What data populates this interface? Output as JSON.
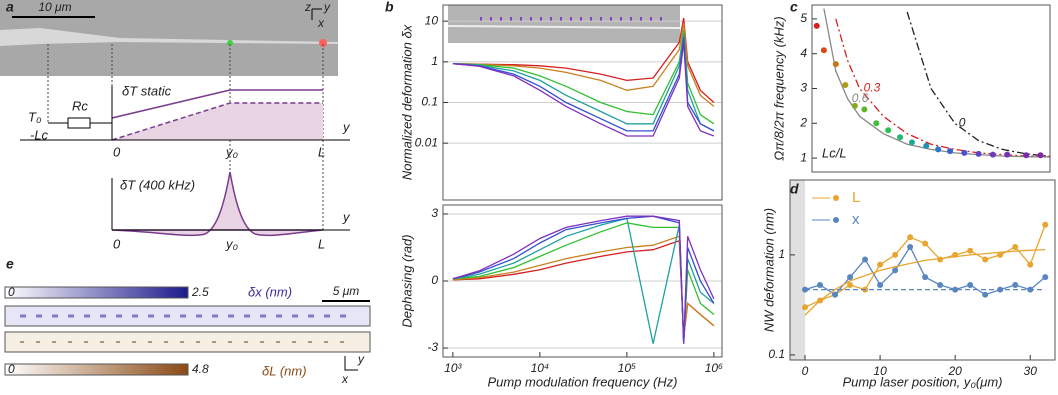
{
  "figure": {
    "letters": {
      "a": "a",
      "b": "b",
      "c": "c",
      "d": "d",
      "e": "e"
    },
    "panel_a": {
      "scale_bar": "10 μm",
      "axis_z": "z",
      "axis_y": "y",
      "axis_x": "x",
      "static_label": "δT static",
      "t0": "T₀",
      "rc": "Rc",
      "minus_lc": "-Lc",
      "zero": "0",
      "y0": "y₀",
      "l": "L",
      "y": "y",
      "ac_label": "δT  (400 kHz)",
      "zero2": "0",
      "y0_2": "y₀",
      "l2": "L",
      "y2": "y"
    },
    "panel_e": {
      "bar1_min": "0",
      "bar1_max": "2.5",
      "bar1_label": "δx (nm)",
      "scale_bar": "5 μm",
      "bar2_min": "0",
      "bar2_max": "4.8",
      "bar2_label": "δL (nm)",
      "axis_y": "y",
      "axis_x": "x"
    }
  },
  "chart_data": [
    {
      "type": "line",
      "ylabel": "Normalized deformation δx",
      "xlog": true,
      "ylog": true,
      "xlim": [
        770,
        1240000
      ],
      "ylim": [
        0.0004,
        25
      ],
      "yticks": [
        10,
        1,
        0.1,
        0.01
      ],
      "grid": true,
      "x": [
        1000,
        2000,
        5000,
        10000,
        20000,
        50000,
        100000,
        200000,
        400000,
        450000,
        500000,
        700000,
        1000000
      ],
      "series": [
        {
          "color": "#d42020",
          "values": [
            0.9,
            0.88,
            0.85,
            0.8,
            0.7,
            0.5,
            0.35,
            0.4,
            3,
            12,
            1,
            0.2,
            0.1
          ]
        },
        {
          "color": "#c88020",
          "values": [
            0.9,
            0.87,
            0.8,
            0.7,
            0.55,
            0.35,
            0.2,
            0.25,
            2,
            9,
            0.8,
            0.15,
            0.08
          ]
        },
        {
          "color": "#30c030",
          "values": [
            0.9,
            0.85,
            0.7,
            0.45,
            0.25,
            0.1,
            0.06,
            0.05,
            1,
            6,
            0.3,
            0.05,
            0.03
          ]
        },
        {
          "color": "#20a0a0",
          "values": [
            0.9,
            0.82,
            0.6,
            0.35,
            0.15,
            0.06,
            0.03,
            0.03,
            0.8,
            5,
            0.2,
            0.03,
            0.02
          ]
        },
        {
          "color": "#3050d0",
          "values": [
            0.9,
            0.8,
            0.5,
            0.25,
            0.1,
            0.04,
            0.02,
            0.02,
            0.5,
            4,
            0.1,
            0.03,
            0.02
          ]
        },
        {
          "color": "#8030c0",
          "values": [
            0.9,
            0.78,
            0.45,
            0.2,
            0.08,
            0.03,
            0.015,
            0.015,
            0.4,
            3,
            0.08,
            0.02,
            0.015
          ]
        }
      ]
    },
    {
      "type": "line",
      "ylabel": "Dephasing (rad)",
      "xlabel": "Pump modulation frequency (Hz)",
      "xlog": true,
      "xlim": [
        770,
        1240000
      ],
      "ylim": [
        -3.4,
        3.4
      ],
      "yticks": [
        3,
        0,
        -3
      ],
      "grid": true,
      "xticks": [
        {
          "value": 1000,
          "label": "10³"
        },
        {
          "value": 10000,
          "label": "10⁴"
        },
        {
          "value": 100000,
          "label": "10⁵"
        },
        {
          "value": 1000000,
          "label": "10⁶"
        }
      ],
      "x": [
        1000,
        2000,
        5000,
        10000,
        20000,
        50000,
        100000,
        200000,
        400000,
        450000,
        500000,
        700000,
        1000000
      ],
      "series": [
        {
          "color": "#d42020",
          "values": [
            0.05,
            0.1,
            0.3,
            0.5,
            0.8,
            1.1,
            1.3,
            1.4,
            1.8,
            -2.5,
            -1,
            -1.5,
            -2
          ]
        },
        {
          "color": "#c88020",
          "values": [
            0.05,
            0.15,
            0.4,
            0.7,
            1.0,
            1.3,
            1.5,
            1.6,
            2.0,
            -2.5,
            -1,
            -1.5,
            -2
          ]
        },
        {
          "color": "#30c030",
          "values": [
            0.1,
            0.2,
            0.6,
            1.1,
            1.6,
            2.2,
            2.6,
            2.4,
            2.4,
            -2.8,
            0.5,
            -1,
            -1.5
          ]
        },
        {
          "color": "#20a0a0",
          "values": [
            0.1,
            0.3,
            0.8,
            1.4,
            2.0,
            2.5,
            2.8,
            -2.8,
            2.5,
            -2.8,
            1,
            -0.5,
            -1
          ]
        },
        {
          "color": "#3050d0",
          "values": [
            0.1,
            0.4,
            1.0,
            1.7,
            2.3,
            2.6,
            2.8,
            2.9,
            2.6,
            -2.8,
            1.5,
            0,
            -1
          ]
        },
        {
          "color": "#8030c0",
          "values": [
            0.1,
            0.45,
            1.2,
            1.9,
            2.4,
            2.7,
            2.9,
            2.9,
            2.7,
            -2.8,
            2,
            0.5,
            -0.8
          ]
        }
      ]
    },
    {
      "type": "scatter",
      "ylabel": "Ωπ/8/2π  frequency (kHz)",
      "annotation": "Lc/L",
      "xlim": [
        0,
        1
      ],
      "ylim": [
        0.6,
        5.4
      ],
      "yticks": [
        1,
        2,
        3,
        4,
        5
      ],
      "grid": false,
      "x": [
        0.05,
        0.1,
        0.15,
        0.2,
        0.3,
        0.4,
        0.5,
        0.6,
        0.7,
        0.8,
        0.9,
        1.0
      ],
      "series": [
        {
          "name": "0",
          "color": "#222222",
          "dash": "8,3,2,3",
          "values": [
            null,
            null,
            null,
            null,
            null,
            5.2,
            3.0,
            2.0,
            1.5,
            1.25,
            1.12,
            1.05
          ]
        },
        {
          "name": "0.3",
          "color": "#d42020",
          "dash": "8,3,2,3",
          "values": [
            null,
            5.0,
            3.8,
            3.0,
            2.2,
            1.7,
            1.4,
            1.25,
            1.15,
            1.1,
            1.06,
            1.04
          ]
        },
        {
          "name": "0.6",
          "color": "#888888",
          "values": [
            5.3,
            3.5,
            2.7,
            2.2,
            1.7,
            1.4,
            1.25,
            1.15,
            1.1,
            1.06,
            1.04,
            1.03
          ]
        },
        {
          "mode": "markers",
          "x": [
            0.02,
            0.05,
            0.1,
            0.14,
            0.18,
            0.22,
            0.27,
            0.32,
            0.37,
            0.42,
            0.48,
            0.53,
            0.58,
            0.64,
            0.7,
            0.76,
            0.82,
            0.9,
            0.96
          ],
          "values": [
            4.8,
            4.1,
            3.7,
            3.1,
            2.5,
            2.4,
            2.0,
            1.8,
            1.6,
            1.45,
            1.35,
            1.25,
            1.2,
            1.15,
            1.12,
            1.1,
            1.1,
            1.08,
            1.08
          ],
          "colors": [
            "#d62020",
            "#d84a1a",
            "#c8731a",
            "#b09a1a",
            "#88a81e",
            "#5cb82a",
            "#3ec03a",
            "#2cc050",
            "#22b870",
            "#20a890",
            "#2090b0",
            "#2a78c8",
            "#3a60d0",
            "#4a50d0",
            "#5a44c8",
            "#6a3cc0",
            "#7234b8",
            "#7a2cb0",
            "#8228a8"
          ]
        }
      ]
    },
    {
      "type": "line",
      "ylabel": "NW deformation (nm)",
      "xlabel": "Pump laser position, y₀(μm)",
      "ylog": true,
      "xlim": [
        -2,
        33.3
      ],
      "ylim": [
        0.089,
        5.6
      ],
      "yticks": [
        1,
        0.1
      ],
      "xticks": [
        0,
        10,
        20,
        30
      ],
      "grid": false,
      "legend": "upper left",
      "x": [
        0,
        2,
        4,
        6,
        8,
        10,
        12,
        14,
        16,
        18,
        20,
        22,
        24,
        26,
        28,
        30,
        32
      ],
      "series": [
        {
          "name": "L",
          "color": "#e8a530",
          "mode": "lines+markers",
          "values": [
            0.3,
            0.35,
            0.4,
            0.5,
            0.45,
            0.8,
            1.0,
            1.5,
            1.3,
            0.9,
            1.0,
            1.1,
            0.9,
            1.0,
            1.2,
            0.8,
            2.0
          ]
        },
        {
          "name": "x",
          "color": "#5a86c0",
          "mode": "lines+markers",
          "values": [
            0.45,
            0.5,
            0.4,
            0.6,
            0.9,
            0.5,
            0.7,
            1.2,
            0.6,
            0.5,
            0.45,
            0.5,
            0.4,
            0.45,
            0.5,
            0.45,
            0.6
          ]
        },
        {
          "color": "#e8a530",
          "values": [
            0.25,
            0.35,
            0.45,
            0.55,
            0.62,
            0.7,
            0.76,
            0.82,
            0.88,
            0.92,
            0.96,
            1.0,
            1.03,
            1.06,
            1.09,
            1.11,
            1.13
          ]
        },
        {
          "color": "#5a86c0",
          "dash": "5,3",
          "values": [
            0.45,
            0.45,
            0.45,
            0.45,
            0.45,
            0.45,
            0.45,
            0.45,
            0.45,
            0.45,
            0.45,
            0.45,
            0.45,
            0.45,
            0.45,
            0.45,
            0.45
          ]
        }
      ]
    }
  ]
}
